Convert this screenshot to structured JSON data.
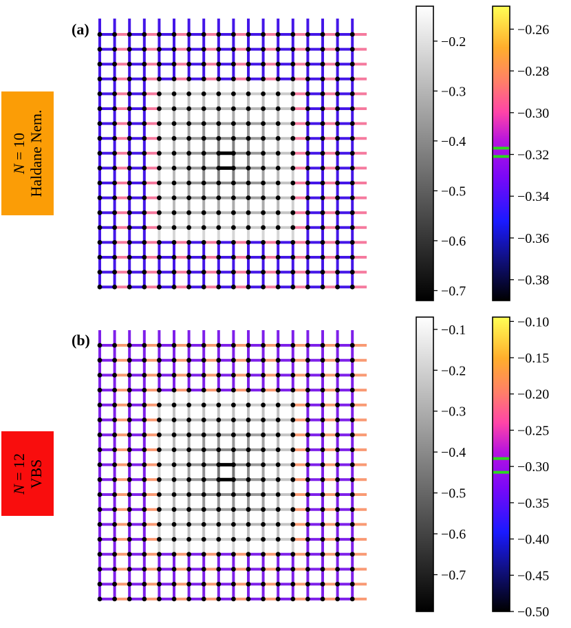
{
  "panels": [
    {
      "id": "a",
      "tag": "(a)",
      "label_line1_var": "N",
      "label_line1_rest": " = 10",
      "label_line2": "Haldane Nem.",
      "label_color": "#fb9d06",
      "gray_colorbar": {
        "ticks": [
          "−0.2",
          "−0.3",
          "−0.4",
          "−0.5",
          "−0.6",
          "−0.7"
        ],
        "range": [
          -0.72,
          -0.13
        ]
      },
      "color_colorbar": {
        "ticks": [
          "−0.26",
          "−0.28",
          "−0.30",
          "−0.32",
          "−0.34",
          "−0.36",
          "−0.38"
        ],
        "range": [
          -0.39,
          -0.249
        ],
        "markers": [
          -0.317,
          -0.321
        ]
      },
      "bulk_horizontal_color": "#f57a9e",
      "bulk_vertical_color": "#4416e8"
    },
    {
      "id": "b",
      "tag": "(b)",
      "label_line1_var": "N",
      "label_line1_rest": " = 12",
      "label_line2": "VBS",
      "label_color": "#f90d0d",
      "gray_colorbar": {
        "ticks": [
          "−0.1",
          "−0.2",
          "−0.3",
          "−0.4",
          "−0.5",
          "−0.6",
          "−0.7"
        ],
        "range": [
          -0.79,
          -0.07
        ]
      },
      "color_colorbar": {
        "ticks": [
          "−0.10",
          "−0.15",
          "−0.20",
          "−0.25",
          "−0.30",
          "−0.35",
          "−0.40",
          "−0.45",
          "−0.50"
        ],
        "range": [
          -0.5,
          -0.094
        ],
        "markers": [
          -0.289,
          -0.308
        ]
      },
      "bulk_horizontal_color": "#f99a74",
      "bulk_vertical_color": "#7e20ea"
    }
  ]
}
